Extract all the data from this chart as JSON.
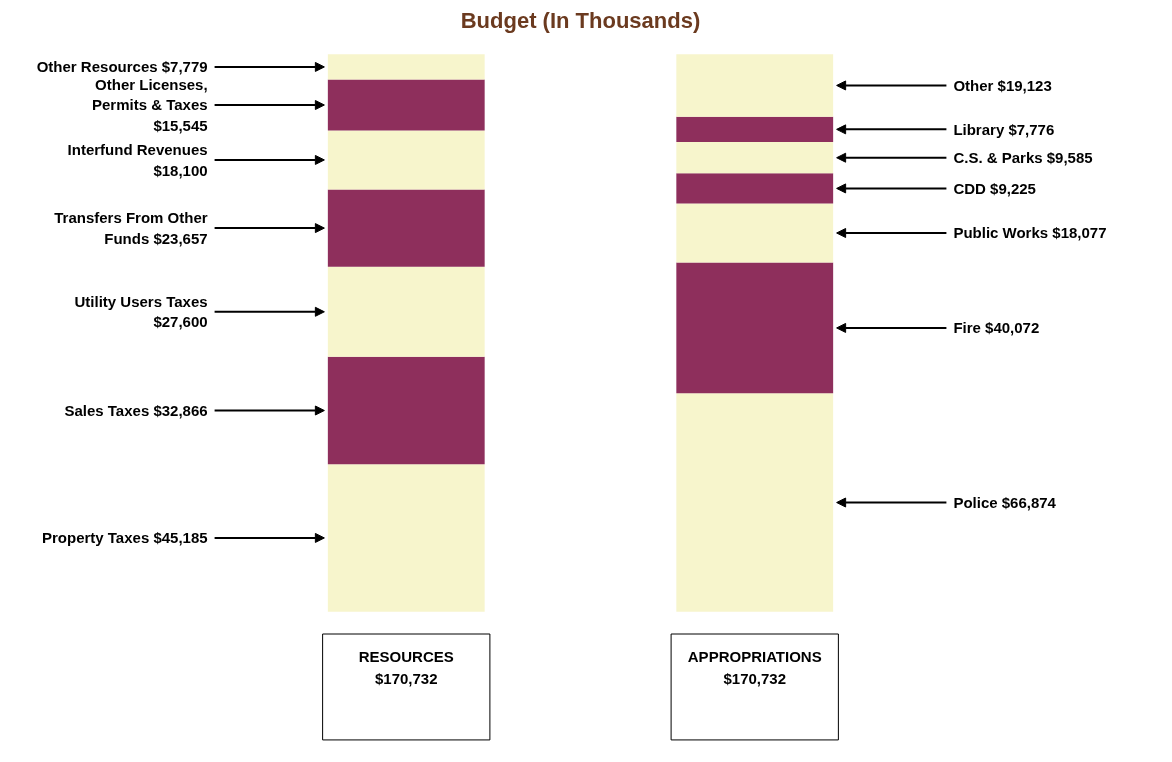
{
  "chart_data": {
    "type": "bar",
    "stacked": true,
    "title": "Budget (In Thousands)",
    "categories": [
      "RESOURCES $170,732",
      "APPROPRIATIONS $170,732"
    ],
    "grid": false,
    "series": [
      {
        "name": "Property Taxes",
        "color": "#f7f5cc",
        "values": [
          45185,
          null
        ],
        "value_labels": [
          "$45,185",
          null
        ]
      },
      {
        "name": "Sales Taxes",
        "color": "#8e2f5c",
        "values": [
          32866,
          null
        ],
        "value_labels": [
          "$32,866",
          null
        ]
      },
      {
        "name": "Utility Users Taxes",
        "color": "#f7f5cc",
        "values": [
          27600,
          null
        ],
        "value_labels": [
          "$27,600",
          null
        ]
      },
      {
        "name": "Transfers From Other Funds",
        "color": "#8e2f5c",
        "values": [
          23657,
          null
        ],
        "value_labels": [
          "$23,657",
          null
        ]
      },
      {
        "name": "Interfund Revenues",
        "color": "#f7f5cc",
        "values": [
          18100,
          null
        ],
        "value_labels": [
          "$18,100",
          null
        ]
      },
      {
        "name": "Other Licenses, Permits & Taxes",
        "color": "#8e2f5c",
        "values": [
          15545,
          null
        ],
        "value_labels": [
          "$15,545",
          null
        ]
      },
      {
        "name": "Other Resources",
        "color": "#f7f5cc",
        "values": [
          7779,
          null
        ],
        "value_labels": [
          "$7,779",
          null
        ]
      },
      {
        "name": "Police",
        "color": "#f7f5cc",
        "values": [
          null,
          66874
        ],
        "value_labels": [
          null,
          "$66,874"
        ]
      },
      {
        "name": "Fire",
        "color": "#8e2f5c",
        "values": [
          null,
          40072
        ],
        "value_labels": [
          null,
          "$40,072"
        ]
      },
      {
        "name": "Public Works",
        "color": "#f7f5cc",
        "values": [
          null,
          18077
        ],
        "value_labels": [
          null,
          "$18,077"
        ]
      },
      {
        "name": "CDD",
        "color": "#8e2f5c",
        "values": [
          null,
          9225
        ],
        "value_labels": [
          null,
          "$9,225"
        ]
      },
      {
        "name": "C.S. & Parks",
        "color": "#f7f5cc",
        "values": [
          null,
          9585
        ],
        "value_labels": [
          null,
          "$9,585"
        ]
      },
      {
        "name": "Library",
        "color": "#8e2f5c",
        "values": [
          null,
          7776
        ],
        "value_labels": [
          null,
          "$7,776"
        ]
      },
      {
        "name": "Other",
        "color": "#f7f5cc",
        "values": [
          null,
          19123
        ],
        "value_labels": [
          null,
          "$19,123"
        ]
      }
    ]
  }
}
